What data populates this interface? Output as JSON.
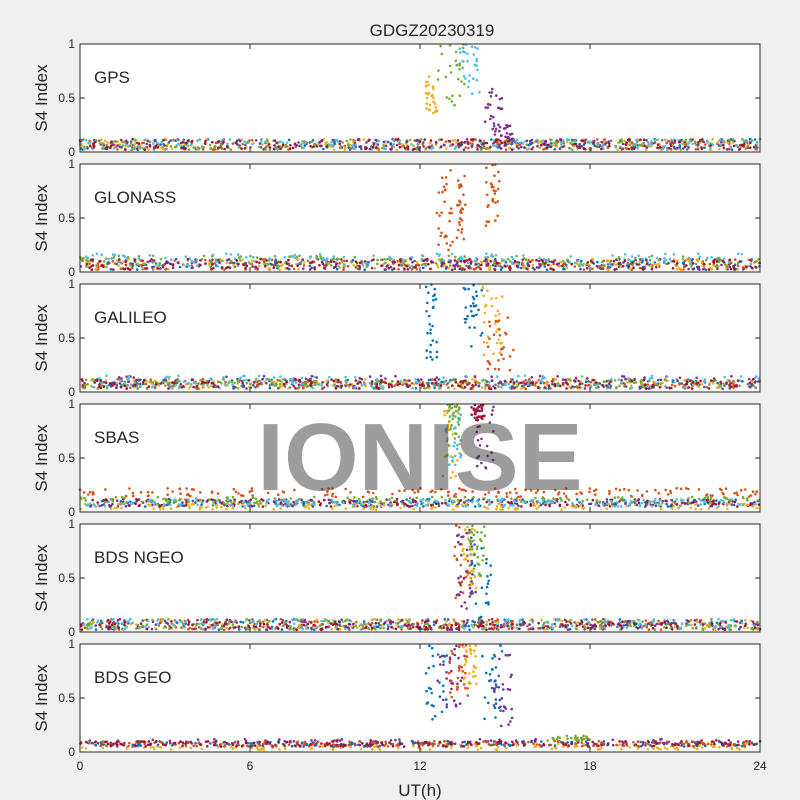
{
  "figure": {
    "title": "GDGZ20230319",
    "watermark": "IONISE",
    "xlabel": "UT(h)",
    "background": "#f0f0f0",
    "axes_background": "#ffffff"
  },
  "chart_data": [
    {
      "type": "scatter",
      "panel_label": "GPS",
      "ylabel": "S4 Index",
      "xlim": [
        0,
        24
      ],
      "ylim": [
        0,
        1
      ],
      "xticks": [
        0,
        6,
        12,
        18,
        24
      ],
      "yticks": [
        0,
        0.5,
        1
      ],
      "grid": false,
      "series_colors": [
        "#0072BD",
        "#D95319",
        "#EDB120",
        "#7E2F8E",
        "#77AC30",
        "#4DBEEE",
        "#A2142F"
      ],
      "baseline": [
        {
          "x": [
            0,
            24
          ],
          "y": [
            0.02,
            0.12
          ],
          "color": "#0072BD"
        },
        {
          "x": [
            0,
            24
          ],
          "y": [
            0.02,
            0.12
          ],
          "color": "#D95319"
        },
        {
          "x": [
            0,
            24
          ],
          "y": [
            0.02,
            0.12
          ],
          "color": "#EDB120"
        },
        {
          "x": [
            0,
            24
          ],
          "y": [
            0.02,
            0.12
          ],
          "color": "#7E2F8E"
        },
        {
          "x": [
            0,
            24
          ],
          "y": [
            0.02,
            0.12
          ],
          "color": "#77AC30"
        },
        {
          "x": [
            0,
            24
          ],
          "y": [
            0.02,
            0.12
          ],
          "color": "#4DBEEE"
        },
        {
          "x": [
            0,
            24
          ],
          "y": [
            0.02,
            0.12
          ],
          "color": "#A2142F"
        }
      ],
      "bursts": [
        {
          "color": "#EDB120",
          "x": [
            12.2,
            12.6
          ],
          "y": [
            0.3,
            0.7
          ]
        },
        {
          "color": "#77AC30",
          "x": [
            12.6,
            13.6
          ],
          "y": [
            0.4,
            1.0
          ]
        },
        {
          "color": "#4DBEEE",
          "x": [
            13.4,
            14.1
          ],
          "y": [
            0.5,
            1.0
          ]
        },
        {
          "color": "#7E2F8E",
          "x": [
            14.3,
            14.9
          ],
          "y": [
            0.15,
            0.6
          ]
        },
        {
          "color": "#7E2F8E",
          "x": [
            14.8,
            15.4
          ],
          "y": [
            0.05,
            0.25
          ]
        }
      ]
    },
    {
      "type": "scatter",
      "panel_label": "GLONASS",
      "ylabel": "S4 Index",
      "xlim": [
        0,
        24
      ],
      "ylim": [
        0,
        1
      ],
      "xticks": [
        0,
        6,
        12,
        18,
        24
      ],
      "yticks": [
        0,
        0.5,
        1
      ],
      "grid": false,
      "baseline": [
        {
          "x": [
            0,
            24
          ],
          "y": [
            0.02,
            0.12
          ],
          "color": "#0072BD"
        },
        {
          "x": [
            0,
            24
          ],
          "y": [
            0.02,
            0.12
          ],
          "color": "#D95319"
        },
        {
          "x": [
            0,
            24
          ],
          "y": [
            0.02,
            0.12
          ],
          "color": "#EDB120"
        },
        {
          "x": [
            0,
            24
          ],
          "y": [
            0.02,
            0.12
          ],
          "color": "#7E2F8E"
        },
        {
          "x": [
            0,
            24
          ],
          "y": [
            0.05,
            0.15
          ],
          "color": "#77AC30"
        },
        {
          "x": [
            0,
            24
          ],
          "y": [
            0.05,
            0.17
          ],
          "color": "#4DBEEE"
        },
        {
          "x": [
            0,
            24
          ],
          "y": [
            0.02,
            0.12
          ],
          "color": "#A2142F"
        }
      ],
      "bursts": [
        {
          "color": "#D95319",
          "x": [
            12.6,
            13.2
          ],
          "y": [
            0.2,
            1.0
          ]
        },
        {
          "color": "#D95319",
          "x": [
            13.3,
            13.6
          ],
          "y": [
            0.3,
            0.9
          ]
        },
        {
          "color": "#D95319",
          "x": [
            14.3,
            14.8
          ],
          "y": [
            0.4,
            1.0
          ]
        }
      ]
    },
    {
      "type": "scatter",
      "panel_label": "GALILEO",
      "ylabel": "S4 Index",
      "xlim": [
        0,
        24
      ],
      "ylim": [
        0,
        1
      ],
      "xticks": [
        0,
        6,
        12,
        18,
        24
      ],
      "yticks": [
        0,
        0.5,
        1
      ],
      "grid": false,
      "baseline": [
        {
          "x": [
            0,
            24
          ],
          "y": [
            0.03,
            0.12
          ],
          "color": "#0072BD"
        },
        {
          "x": [
            0,
            24
          ],
          "y": [
            0.03,
            0.12
          ],
          "color": "#D95319"
        },
        {
          "x": [
            0,
            24
          ],
          "y": [
            0.03,
            0.12
          ],
          "color": "#EDB120"
        },
        {
          "x": [
            0,
            24
          ],
          "y": [
            0.03,
            0.15
          ],
          "color": "#7E2F8E"
        },
        {
          "x": [
            0,
            24
          ],
          "y": [
            0.03,
            0.12
          ],
          "color": "#77AC30"
        },
        {
          "x": [
            0,
            24
          ],
          "y": [
            0.03,
            0.15
          ],
          "color": "#4DBEEE"
        },
        {
          "x": [
            0,
            24
          ],
          "y": [
            0.03,
            0.12
          ],
          "color": "#A2142F"
        }
      ],
      "bursts": [
        {
          "color": "#0072BD",
          "x": [
            12.2,
            12.6
          ],
          "y": [
            0.3,
            1.0
          ]
        },
        {
          "color": "#0072BD",
          "x": [
            13.5,
            14.2
          ],
          "y": [
            0.4,
            1.0
          ]
        },
        {
          "color": "#EDB120",
          "x": [
            14.2,
            14.9
          ],
          "y": [
            0.3,
            1.0
          ]
        },
        {
          "color": "#D95319",
          "x": [
            14.3,
            15.3
          ],
          "y": [
            0.2,
            0.7
          ]
        }
      ]
    },
    {
      "type": "scatter",
      "panel_label": "SBAS",
      "ylabel": "S4 Index",
      "xlim": [
        0,
        24
      ],
      "ylim": [
        0,
        1
      ],
      "xticks": [
        0,
        6,
        12,
        18,
        24
      ],
      "yticks": [
        0,
        0.5,
        1
      ],
      "grid": false,
      "baseline": [
        {
          "x": [
            0,
            24
          ],
          "y": [
            0.14,
            0.22
          ],
          "color": "#D95319"
        },
        {
          "x": [
            0,
            24
          ],
          "y": [
            0.05,
            0.12
          ],
          "color": "#0072BD"
        },
        {
          "x": [
            0,
            24
          ],
          "y": [
            0.05,
            0.12
          ],
          "color": "#7E2F8E"
        },
        {
          "x": [
            0,
            24
          ],
          "y": [
            0.05,
            0.12
          ],
          "color": "#A2142F"
        },
        {
          "x": [
            0,
            24
          ],
          "y": [
            0.02,
            0.08
          ],
          "color": "#EDB120"
        },
        {
          "x": [
            0,
            24
          ],
          "y": [
            0.08,
            0.14
          ],
          "color": "#77AC30"
        },
        {
          "x": [
            0,
            24
          ],
          "y": [
            0.05,
            0.12
          ],
          "color": "#4DBEEE"
        }
      ],
      "bursts": [
        {
          "color": "#EDB120",
          "x": [
            12.8,
            13.4
          ],
          "y": [
            0.3,
            1.0
          ]
        },
        {
          "color": "#4DBEEE",
          "x": [
            12.9,
            13.5
          ],
          "y": [
            0.4,
            1.0
          ]
        },
        {
          "color": "#77AC30",
          "x": [
            13.0,
            13.4
          ],
          "y": [
            0.6,
            1.0
          ]
        },
        {
          "color": "#7E2F8E",
          "x": [
            13.9,
            14.6
          ],
          "y": [
            0.4,
            1.0
          ]
        },
        {
          "color": "#A2142F",
          "x": [
            13.8,
            14.3
          ],
          "y": [
            0.85,
            1.0
          ]
        }
      ]
    },
    {
      "type": "scatter",
      "panel_label": "BDS NGEO",
      "ylabel": "S4 Index",
      "xlim": [
        0,
        24
      ],
      "ylim": [
        0,
        1
      ],
      "xticks": [
        0,
        6,
        12,
        18,
        24
      ],
      "yticks": [
        0,
        0.5,
        1
      ],
      "grid": false,
      "baseline": [
        {
          "x": [
            0,
            24
          ],
          "y": [
            0.02,
            0.12
          ],
          "color": "#0072BD"
        },
        {
          "x": [
            0,
            24
          ],
          "y": [
            0.02,
            0.12
          ],
          "color": "#D95319"
        },
        {
          "x": [
            0,
            24
          ],
          "y": [
            0.02,
            0.12
          ],
          "color": "#EDB120"
        },
        {
          "x": [
            0,
            24
          ],
          "y": [
            0.02,
            0.12
          ],
          "color": "#7E2F8E"
        },
        {
          "x": [
            0,
            24
          ],
          "y": [
            0.02,
            0.12
          ],
          "color": "#77AC30"
        },
        {
          "x": [
            0,
            24
          ],
          "y": [
            0.02,
            0.12
          ],
          "color": "#4DBEEE"
        },
        {
          "x": [
            0,
            24
          ],
          "y": [
            0.02,
            0.1
          ],
          "color": "#A2142F"
        }
      ],
      "bursts": [
        {
          "color": "#D95319",
          "x": [
            13.2,
            13.9
          ],
          "y": [
            0.3,
            1.0
          ]
        },
        {
          "color": "#EDB120",
          "x": [
            13.5,
            14.1
          ],
          "y": [
            0.4,
            1.0
          ]
        },
        {
          "color": "#7E2F8E",
          "x": [
            13.3,
            14.0
          ],
          "y": [
            0.2,
            1.0
          ]
        },
        {
          "color": "#0072BD",
          "x": [
            13.8,
            14.5
          ],
          "y": [
            0.1,
            0.9
          ]
        },
        {
          "color": "#77AC30",
          "x": [
            13.7,
            14.3
          ],
          "y": [
            0.5,
            1.0
          ]
        }
      ]
    },
    {
      "type": "scatter",
      "panel_label": "BDS GEO",
      "ylabel": "S4 Index",
      "xlim": [
        0,
        24
      ],
      "ylim": [
        0,
        1
      ],
      "xticks": [
        0,
        6,
        12,
        18,
        24
      ],
      "yticks": [
        0,
        0.5,
        1
      ],
      "grid": false,
      "baseline": [
        {
          "x": [
            0,
            24
          ],
          "y": [
            0.06,
            0.12
          ],
          "color": "#7E2F8E"
        },
        {
          "x": [
            0,
            24
          ],
          "y": [
            0.02,
            0.08
          ],
          "color": "#EDB120"
        },
        {
          "x": [
            0,
            24
          ],
          "y": [
            0.05,
            0.1
          ],
          "color": "#0072BD"
        },
        {
          "x": [
            0,
            24
          ],
          "y": [
            0.05,
            0.1
          ],
          "color": "#D95319"
        },
        {
          "x": [
            0,
            24
          ],
          "y": [
            0.05,
            0.1
          ],
          "color": "#A2142F"
        },
        {
          "x": [
            16.5,
            18.0
          ],
          "y": [
            0.1,
            0.15
          ],
          "color": "#77AC30"
        }
      ],
      "bursts": [
        {
          "color": "#0072BD",
          "x": [
            12.2,
            13.0
          ],
          "y": [
            0.3,
            1.0
          ]
        },
        {
          "color": "#7E2F8E",
          "x": [
            12.6,
            13.6
          ],
          "y": [
            0.4,
            1.0
          ]
        },
        {
          "color": "#D95319",
          "x": [
            13.0,
            13.7
          ],
          "y": [
            0.5,
            1.0
          ]
        },
        {
          "color": "#EDB120",
          "x": [
            13.5,
            14.0
          ],
          "y": [
            0.6,
            1.0
          ]
        },
        {
          "color": "#0072BD",
          "x": [
            14.2,
            14.9
          ],
          "y": [
            0.3,
            1.0
          ]
        },
        {
          "color": "#7E2F8E",
          "x": [
            14.6,
            15.3
          ],
          "y": [
            0.2,
            0.9
          ]
        }
      ]
    }
  ]
}
